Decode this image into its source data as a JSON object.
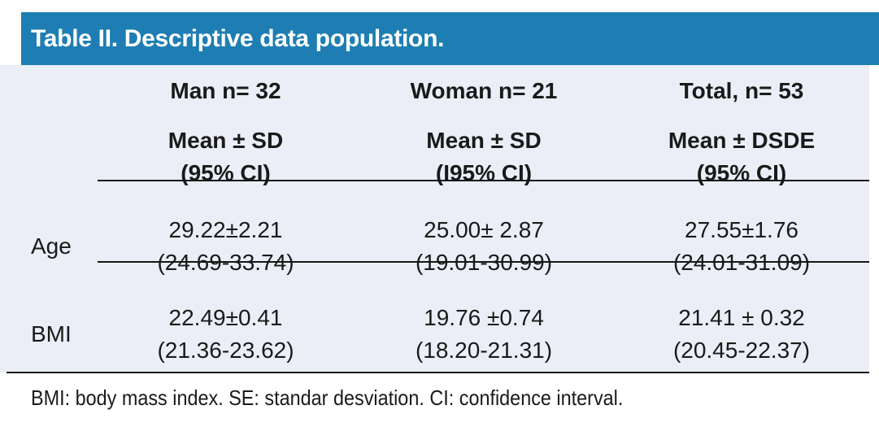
{
  "title": "Table II. Descriptive data population.",
  "colors": {
    "title_bar_bg": "#1e7eb3",
    "title_text": "#ffffff",
    "body_bg": "#ebeef6",
    "text": "#1a1a1a",
    "rule": "#161616"
  },
  "table": {
    "group_headers": [
      "Man n= 32",
      "Woman n= 21",
      "Total, n= 53"
    ],
    "sub_headers": [
      {
        "line1": "Mean ± SD",
        "line2": "(95% CI)"
      },
      {
        "line1": "Mean ± SD",
        "line2": "(I95% CI)"
      },
      {
        "line1": "Mean ± DSDE",
        "line2": "(95% CI)"
      }
    ],
    "rows": [
      {
        "label": "Age",
        "cells": [
          {
            "mean": "29.22±2.21",
            "ci": "(24.69-33.74)"
          },
          {
            "mean": "25.00± 2.87",
            "ci": "(19.01-30.99)"
          },
          {
            "mean": "27.55±1.76",
            "ci": "(24.01-31.09)"
          }
        ]
      },
      {
        "label": "BMI",
        "cells": [
          {
            "mean": "22.49±0.41",
            "ci": "(21.36-23.62)"
          },
          {
            "mean": "19.76 ±0.74",
            "ci": "(18.20-21.31)"
          },
          {
            "mean": "21.41 ± 0.32",
            "ci": "(20.45-22.37)"
          }
        ]
      }
    ]
  },
  "footnote": "BMI: body mass index. SE: standar desviation. CI: confidence interval."
}
